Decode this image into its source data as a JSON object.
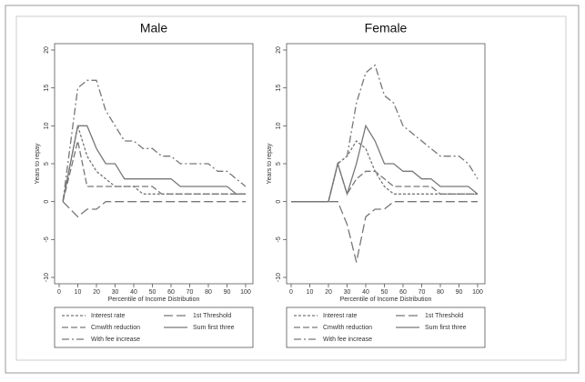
{
  "chart_data": [
    {
      "type": "line",
      "title": "Male",
      "x_label": "Percentile of Income Distribution",
      "y_label": "Years to repay",
      "xlim": [
        0,
        100
      ],
      "xticks": [
        0,
        10,
        20,
        30,
        40,
        50,
        60,
        70,
        80,
        90,
        100
      ],
      "ylim": [
        -10,
        20
      ],
      "yticks": [
        -10,
        -5,
        0,
        5,
        10,
        15,
        20
      ],
      "grid": false,
      "x": [
        2,
        10,
        15,
        20,
        25,
        30,
        35,
        40,
        45,
        50,
        55,
        60,
        65,
        70,
        75,
        80,
        85,
        90,
        95,
        100
      ],
      "series": [
        {
          "name": "Interest rate",
          "color": "#777777",
          "dash": "3,2",
          "values": [
            0,
            10,
            6,
            4,
            3,
            2,
            2,
            2,
            1,
            1,
            1,
            1,
            1,
            1,
            1,
            1,
            1,
            1,
            1,
            1
          ]
        },
        {
          "name": "1st Threshold",
          "color": "#777777",
          "dash": "10,4",
          "values": [
            0,
            -2,
            -1,
            -1,
            0,
            0,
            0,
            0,
            0,
            0,
            0,
            0,
            0,
            0,
            0,
            0,
            0,
            0,
            0,
            0
          ]
        },
        {
          "name": "Cmwlth reduction",
          "color": "#777777",
          "dash": "7,3",
          "values": [
            0,
            8,
            2,
            2,
            2,
            2,
            2,
            2,
            2,
            2,
            1,
            1,
            1,
            1,
            1,
            1,
            1,
            1,
            1,
            1
          ]
        },
        {
          "name": "Sum first three",
          "color": "#777777",
          "dash": "none",
          "values": [
            0,
            10,
            10,
            7,
            5,
            5,
            3,
            3,
            3,
            3,
            3,
            3,
            2,
            2,
            2,
            2,
            2,
            2,
            1,
            1
          ]
        },
        {
          "name": "With fee increase",
          "color": "#777777",
          "dash": "8,3,2,3",
          "values": [
            0,
            15,
            16,
            16,
            12,
            10,
            8,
            8,
            7,
            7,
            6,
            6,
            5,
            5,
            5,
            5,
            4,
            4,
            3,
            2
          ]
        }
      ]
    },
    {
      "type": "line",
      "title": "Female",
      "x_label": "Percentile of Income Distribution",
      "y_label": "Years to repay",
      "xlim": [
        0,
        100
      ],
      "xticks": [
        0,
        10,
        20,
        30,
        40,
        50,
        60,
        70,
        80,
        90,
        100
      ],
      "ylim": [
        -10,
        20
      ],
      "yticks": [
        -10,
        -5,
        0,
        5,
        10,
        15,
        20
      ],
      "grid": false,
      "x": [
        0,
        5,
        10,
        15,
        20,
        25,
        30,
        35,
        40,
        45,
        50,
        55,
        60,
        65,
        70,
        75,
        80,
        85,
        90,
        95,
        100
      ],
      "series": [
        {
          "name": "Interest rate",
          "color": "#777777",
          "dash": "3,2",
          "values": [
            0,
            0,
            0,
            0,
            0,
            5,
            6,
            8,
            7,
            4,
            2,
            1,
            1,
            1,
            1,
            1,
            1,
            1,
            1,
            1,
            1
          ]
        },
        {
          "name": "1st Threshold",
          "color": "#777777",
          "dash": "10,4",
          "values": [
            0,
            0,
            0,
            0,
            0,
            0,
            -3,
            -8,
            -2,
            -1,
            -1,
            0,
            0,
            0,
            0,
            0,
            0,
            0,
            0,
            0,
            0
          ]
        },
        {
          "name": "Cmwlth reduction",
          "color": "#777777",
          "dash": "7,3",
          "values": [
            0,
            0,
            0,
            0,
            0,
            5,
            1,
            3,
            4,
            4,
            3,
            2,
            2,
            2,
            2,
            2,
            1,
            1,
            1,
            1,
            1
          ]
        },
        {
          "name": "Sum first three",
          "color": "#777777",
          "dash": "none",
          "values": [
            0,
            0,
            0,
            0,
            0,
            5,
            1,
            5,
            10,
            8,
            5,
            5,
            4,
            4,
            3,
            3,
            2,
            2,
            2,
            2,
            1
          ]
        },
        {
          "name": "With fee increase",
          "color": "#777777",
          "dash": "8,3,2,3",
          "values": [
            0,
            0,
            0,
            0,
            0,
            5,
            6,
            13,
            17,
            18,
            14,
            13,
            10,
            9,
            8,
            7,
            6,
            6,
            6,
            5,
            3
          ]
        }
      ]
    }
  ]
}
